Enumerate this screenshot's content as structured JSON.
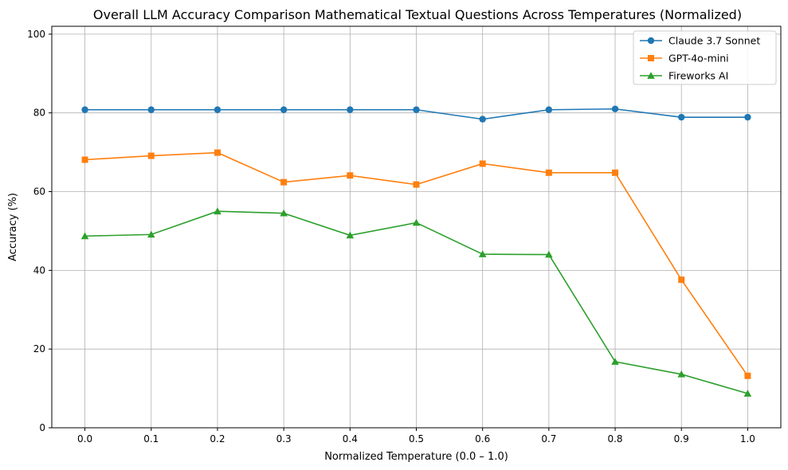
{
  "chart_data": {
    "type": "line",
    "title": "Overall LLM Accuracy Comparison Mathematical Textual Questions Across Temperatures (Normalized)",
    "xlabel": "Normalized Temperature (0.0 – 1.0)",
    "ylabel": "Accuracy (%)",
    "x": [
      0.0,
      0.1,
      0.2,
      0.3,
      0.4,
      0.5,
      0.6,
      0.7,
      0.8,
      0.9,
      1.0
    ],
    "x_tick_labels": [
      "0.0",
      "0.1",
      "0.2",
      "0.3",
      "0.4",
      "0.5",
      "0.6",
      "0.7",
      "0.8",
      "0.9",
      "1.0"
    ],
    "xlim": [
      -0.05,
      1.05
    ],
    "ylim": [
      0,
      102
    ],
    "y_ticks": [
      0,
      20,
      40,
      60,
      80,
      100
    ],
    "y_tick_labels": [
      "0",
      "20",
      "40",
      "60",
      "80",
      "100"
    ],
    "grid": true,
    "legend_position": "top-right",
    "series": [
      {
        "name": "Claude 3.7 Sonnet",
        "color": "#1f77b4",
        "marker": "circle",
        "values": [
          80.8,
          80.8,
          80.8,
          80.8,
          80.8,
          80.8,
          78.4,
          80.8,
          81.0,
          78.9,
          78.9
        ]
      },
      {
        "name": "GPT-4o-mini",
        "color": "#ff7f0e",
        "marker": "square",
        "values": [
          68.1,
          69.1,
          69.9,
          62.4,
          64.1,
          61.8,
          67.1,
          64.8,
          64.8,
          37.6,
          13.2
        ]
      },
      {
        "name": "Fireworks AI",
        "color": "#2ca02c",
        "marker": "triangle",
        "values": [
          48.7,
          49.1,
          55.0,
          54.5,
          48.9,
          52.1,
          44.1,
          44.0,
          16.8,
          13.6,
          8.7
        ]
      }
    ]
  }
}
